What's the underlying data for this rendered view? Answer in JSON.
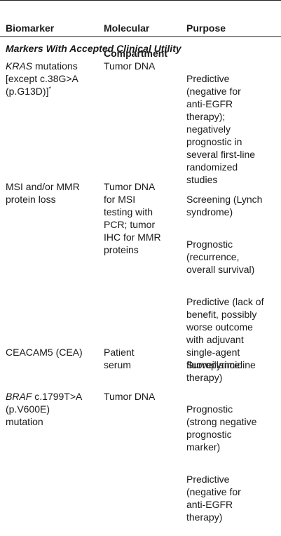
{
  "header": {
    "col1": "Biomarker",
    "col2_line1": "Molecular",
    "col2_line2": "Compartment",
    "col3": "Purpose"
  },
  "section_title": "Markers With Accepted Clinical Utility",
  "rows": [
    {
      "biomarker_italic": "KRAS",
      "biomarker_rest": " mutations\n[except c.38G>A\n(p.G13D)]",
      "biomarker_footnote": "*",
      "compartment": "Tumor DNA",
      "purposes": [
        "Predictive\n(negative for\nanti-EGFR\ntherapy);\nnegatively\nprognostic in\nseveral first-line\nrandomized\nstudies"
      ]
    },
    {
      "biomarker": "MSI and/or MMR\nprotein loss",
      "compartment": "Tumor DNA\nfor MSI\ntesting with\nPCR; tumor\nIHC for MMR\nproteins",
      "purposes": [
        "Screening (Lynch\nsyndrome)",
        "Prognostic\n(recurrence,\noverall survival)",
        "Predictive (lack of\nbenefit, possibly\nworse outcome\nwith adjuvant\nsingle-agent\nfluoropyrimidine\ntherapy)"
      ]
    },
    {
      "biomarker": "CEACAM5 (CEA)",
      "compartment": "Patient\nserum",
      "purposes": [
        "Surveillance"
      ]
    },
    {
      "biomarker_italic": "BRAF",
      "biomarker_rest": " c.1799T>A\n(p.V600E)\nmutation",
      "compartment": "Tumor DNA",
      "purposes": [
        "Prognostic\n(strong negative\nprognostic\nmarker)",
        "Predictive\n(negative for\nanti-EGFR\ntherapy)"
      ]
    }
  ]
}
